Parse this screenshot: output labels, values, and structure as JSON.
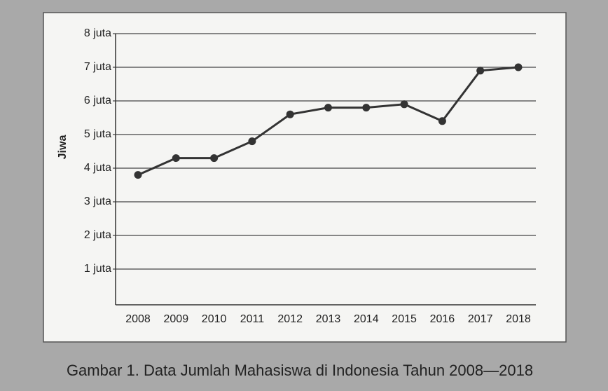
{
  "chart_data": {
    "type": "line",
    "title": "Gambar 1. Data Jumlah Mahasiswa di Indonesia Tahun 2008—2018",
    "ylabel": "Jiwa",
    "categories": [
      "2008",
      "2009",
      "2010",
      "2011",
      "2012",
      "2013",
      "2014",
      "2015",
      "2016",
      "2017",
      "2018"
    ],
    "series": [
      {
        "name": "Jumlah Mahasiswa",
        "color": "#333333",
        "values": [
          3800000,
          4300000,
          4300000,
          4800000,
          5600000,
          5800000,
          5800000,
          5900000,
          5400000,
          6900000,
          7000000
        ]
      }
    ],
    "ylim": [
      0,
      8000000
    ],
    "yticks": [
      {
        "value": 1000000,
        "label": "1 juta"
      },
      {
        "value": 2000000,
        "label": "2 juta"
      },
      {
        "value": 3000000,
        "label": "3 juta"
      },
      {
        "value": 4000000,
        "label": "4 juta"
      },
      {
        "value": 5000000,
        "label": "5 juta"
      },
      {
        "value": 6000000,
        "label": "6 juta"
      },
      {
        "value": 7000000,
        "label": "7 juta"
      },
      {
        "value": 8000000,
        "label": "8 juta"
      }
    ],
    "grid": true
  }
}
